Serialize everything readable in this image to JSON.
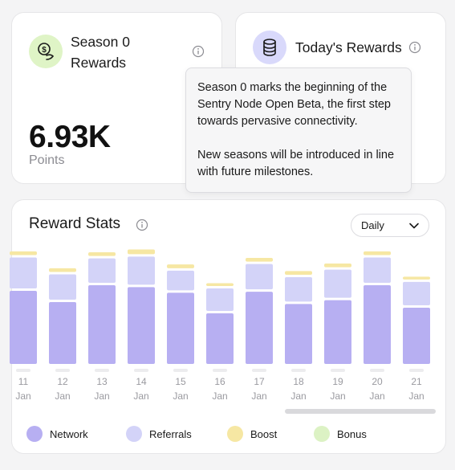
{
  "season_card": {
    "title": "Season 0 Rewards",
    "value": "6.93K",
    "unit": "Points",
    "icon": "coin-hand-icon"
  },
  "today_card": {
    "title": "Today's Rewards",
    "icon": "database-icon"
  },
  "tooltip": {
    "paragraph1": "Season 0 marks the beginning of the Sentry Node Open Beta, the first step towards pervasive connectivity.",
    "paragraph2": "New seasons will be introduced in line with future milestones."
  },
  "stats": {
    "title": "Reward Stats",
    "period_selected": "Daily"
  },
  "colors": {
    "network": "#b7aff2",
    "referrals": "#d3d3f8",
    "boost": "#f6e7a3",
    "bonus": "#dcf2c4"
  },
  "chart_data": {
    "type": "bar",
    "stacked": true,
    "categories": [
      {
        "day": "11",
        "month": "Jan"
      },
      {
        "day": "12",
        "month": "Jan"
      },
      {
        "day": "13",
        "month": "Jan"
      },
      {
        "day": "14",
        "month": "Jan"
      },
      {
        "day": "15",
        "month": "Jan"
      },
      {
        "day": "16",
        "month": "Jan"
      },
      {
        "day": "17",
        "month": "Jan"
      },
      {
        "day": "18",
        "month": "Jan"
      },
      {
        "day": "19",
        "month": "Jan"
      },
      {
        "day": "20",
        "month": "Jan"
      },
      {
        "day": "21",
        "month": "Jan"
      }
    ],
    "series": [
      {
        "name": "Network",
        "key": "network",
        "values": [
          78,
          66,
          84,
          82,
          76,
          54,
          77,
          64,
          68,
          84,
          60
        ]
      },
      {
        "name": "Referrals",
        "key": "referrals",
        "values": [
          33,
          27,
          26,
          30,
          21,
          24,
          27,
          26,
          30,
          27,
          25
        ]
      },
      {
        "name": "Boost",
        "key": "boost",
        "values": [
          4,
          4,
          4,
          5,
          4,
          3,
          4,
          4,
          4,
          4,
          3
        ]
      },
      {
        "name": "Bonus",
        "key": "bonus",
        "values": [
          0,
          0,
          0,
          0,
          0,
          0,
          0,
          0,
          0,
          0,
          0
        ]
      }
    ],
    "ymax": 120,
    "legend_position": "bottom"
  },
  "legend": [
    {
      "label": "Network",
      "key": "network"
    },
    {
      "label": "Referrals",
      "key": "referrals"
    },
    {
      "label": "Boost",
      "key": "boost"
    },
    {
      "label": "Bonus",
      "key": "bonus"
    }
  ]
}
